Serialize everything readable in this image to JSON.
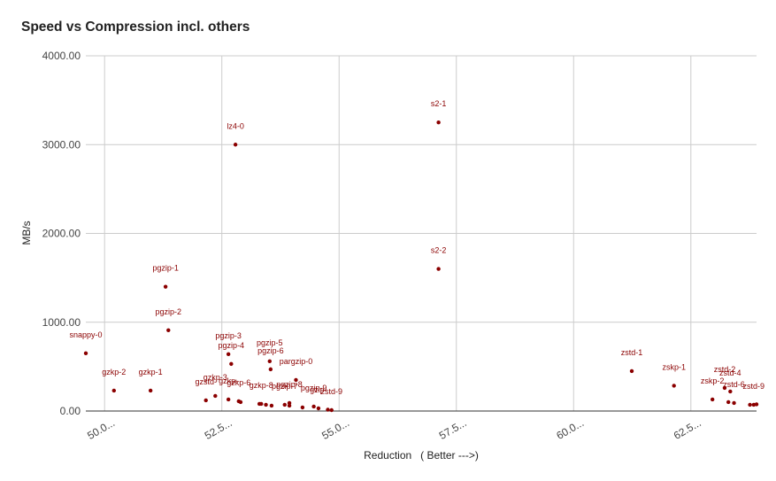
{
  "chart_data": {
    "type": "scatter",
    "title": "Speed vs Compression incl. others",
    "xlabel": "Reduction   ( Better --->)",
    "ylabel": "MB/s",
    "xlim": [
      49.6,
      63.9
    ],
    "ylim": [
      0,
      4000
    ],
    "x_ticks": [
      50,
      52.5,
      55,
      57.5,
      60,
      62.5
    ],
    "x_tick_labels": [
      "50.0...",
      "52.5...",
      "55.0...",
      "57.5...",
      "60.0...",
      "62.5..."
    ],
    "y_ticks": [
      0,
      1000,
      2000,
      3000,
      4000
    ],
    "y_tick_labels": [
      "0.00",
      "1000.00",
      "2000.00",
      "3000.00",
      "4000.00"
    ],
    "grid": true,
    "legend": "none",
    "point_color": "#8b0000",
    "points": [
      {
        "label": "snappy-0",
        "x": 49.6,
        "y": 650
      },
      {
        "label": "gzkp-2",
        "x": 50.2,
        "y": 230
      },
      {
        "label": "gzkp-1",
        "x": 50.98,
        "y": 230
      },
      {
        "label": "pgzip-1",
        "x": 51.3,
        "y": 1400
      },
      {
        "label": "pgzip-2",
        "x": 51.36,
        "y": 910
      },
      {
        "label": "lz4-0",
        "x": 52.79,
        "y": 3000
      },
      {
        "label": "pgzip-3",
        "x": 52.64,
        "y": 640
      },
      {
        "label": "pgzip-4",
        "x": 52.7,
        "y": 530
      },
      {
        "label": "pgzip-5",
        "x": 53.52,
        "y": 560
      },
      {
        "label": "pgzip-6",
        "x": 53.54,
        "y": 470
      },
      {
        "label": "pgzip-7",
        "x": 53.84,
        "y": 70
      },
      {
        "label": "pgzip-8",
        "x": 53.94,
        "y": 90
      },
      {
        "label": "pgzip-9",
        "x": 54.46,
        "y": 50
      },
      {
        "label": "pargzip-0",
        "x": 54.08,
        "y": 350
      },
      {
        "label": "gzstd-",
        "x": 52.16,
        "y": 120
      },
      {
        "label": "gzkp-3",
        "x": 52.36,
        "y": 170
      },
      {
        "label": "gzkp-",
        "x": 52.64,
        "y": 130
      },
      {
        "label": "gzkp-6",
        "x": 52.86,
        "y": 110
      },
      {
        "label": "gzkp-8",
        "x": 53.34,
        "y": 80
      },
      {
        "label": "gzip-",
        "x": 54.56,
        "y": 30
      },
      {
        "label": "zstd-9",
        "x": 54.84,
        "y": 10
      },
      {
        "label": "s2-1",
        "x": 57.12,
        "y": 3250
      },
      {
        "label": "s2-2",
        "x": 57.12,
        "y": 1600
      },
      {
        "label": "zstd-1",
        "x": 61.24,
        "y": 450
      },
      {
        "label": "zskp-1",
        "x": 62.14,
        "y": 285
      },
      {
        "label": "zskp-2",
        "x": 62.96,
        "y": 130
      },
      {
        "label": "zstd-2",
        "x": 63.22,
        "y": 260
      },
      {
        "label": "zstd-4",
        "x": 63.34,
        "y": 220
      },
      {
        "label": "zstd-6",
        "x": 63.42,
        "y": 90
      },
      {
        "label": "zstd-9",
        "x": 63.84,
        "y": 70
      }
    ],
    "unlabeled_points": [
      {
        "x": 52.9,
        "y": 100
      },
      {
        "x": 53.3,
        "y": 80
      },
      {
        "x": 53.44,
        "y": 70
      },
      {
        "x": 53.56,
        "y": 60
      },
      {
        "x": 53.94,
        "y": 60
      },
      {
        "x": 54.22,
        "y": 40
      },
      {
        "x": 54.76,
        "y": 15
      },
      {
        "x": 63.3,
        "y": 100
      },
      {
        "x": 63.76,
        "y": 70
      },
      {
        "x": 63.9,
        "y": 75
      }
    ]
  }
}
